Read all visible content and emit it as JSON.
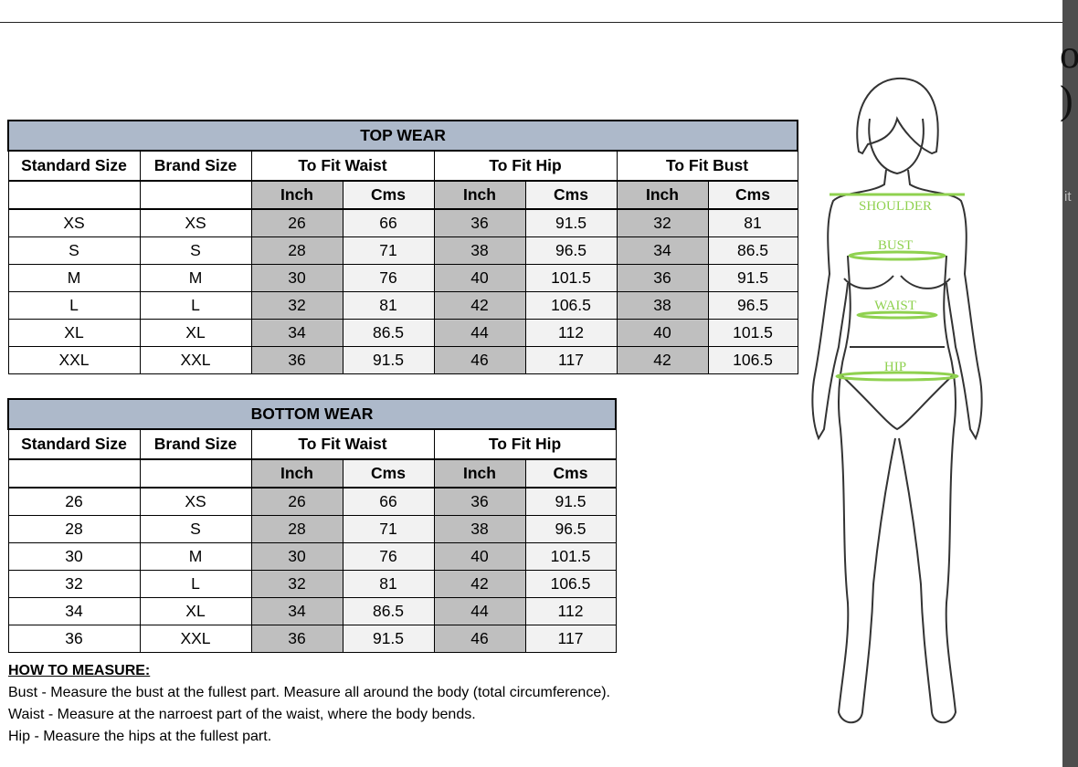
{
  "top_wear": {
    "title": "TOP WEAR",
    "headers": [
      "Standard Size",
      "Brand Size",
      "To Fit Waist",
      "To Fit Hip",
      "To Fit Bust"
    ],
    "subheaders": [
      "Inch",
      "Cms",
      "Inch",
      "Cms",
      "Inch",
      "Cms"
    ],
    "rows": [
      [
        "XS",
        "XS",
        "26",
        "66",
        "36",
        "91.5",
        "32",
        "81"
      ],
      [
        "S",
        "S",
        "28",
        "71",
        "38",
        "96.5",
        "34",
        "86.5"
      ],
      [
        "M",
        "M",
        "30",
        "76",
        "40",
        "101.5",
        "36",
        "91.5"
      ],
      [
        "L",
        "L",
        "32",
        "81",
        "42",
        "106.5",
        "38",
        "96.5"
      ],
      [
        "XL",
        "XL",
        "34",
        "86.5",
        "44",
        "112",
        "40",
        "101.5"
      ],
      [
        "XXL",
        "XXL",
        "36",
        "91.5",
        "46",
        "117",
        "42",
        "106.5"
      ]
    ]
  },
  "bottom_wear": {
    "title": "BOTTOM WEAR",
    "headers": [
      "Standard Size",
      "Brand Size",
      "To Fit Waist",
      "To Fit Hip"
    ],
    "subheaders": [
      "Inch",
      "Cms",
      "Inch",
      "Cms"
    ],
    "rows": [
      [
        "26",
        "XS",
        "26",
        "66",
        "36",
        "91.5"
      ],
      [
        "28",
        "S",
        "28",
        "71",
        "38",
        "96.5"
      ],
      [
        "30",
        "M",
        "30",
        "76",
        "40",
        "101.5"
      ],
      [
        "32",
        "L",
        "32",
        "81",
        "42",
        "106.5"
      ],
      [
        "34",
        "XL",
        "34",
        "86.5",
        "44",
        "112"
      ],
      [
        "36",
        "XXL",
        "36",
        "91.5",
        "46",
        "117"
      ]
    ]
  },
  "how_to_measure": {
    "heading": "HOW TO MEASURE:",
    "lines": [
      "Bust - Measure the bust at the fullest part. Measure all around the body (total circumference).",
      "Waist - Measure at the narroest part of the waist, where the body bends.",
      "Hip - Measure the hips at the fullest part."
    ]
  },
  "figure": {
    "labels": [
      "SHOULDER",
      "BUST",
      "WAIST",
      "HIP"
    ],
    "line_color": "#8fd14f"
  },
  "background_fragments": [
    "o",
    ")",
    "it"
  ]
}
